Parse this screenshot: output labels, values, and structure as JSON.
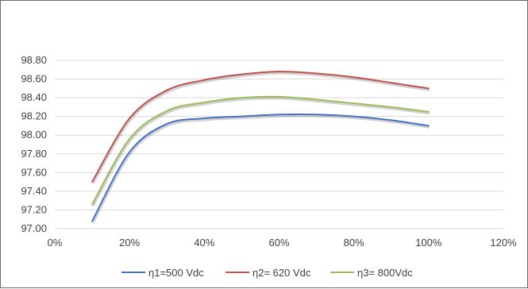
{
  "chart_data": {
    "type": "line",
    "title": "",
    "xlabel": "",
    "ylabel": "",
    "x": [
      0.1,
      0.2,
      0.3,
      0.4,
      0.5,
      0.6,
      0.7,
      0.8,
      0.9,
      1.0
    ],
    "xlim": [
      0,
      1.2
    ],
    "ylim": [
      97.0,
      98.8
    ],
    "x_ticks": [
      "0%",
      "20%",
      "40%",
      "60%",
      "80%",
      "100%",
      "120%"
    ],
    "y_ticks": [
      "97.00",
      "97.20",
      "97.40",
      "97.60",
      "97.80",
      "98.00",
      "98.20",
      "98.40",
      "98.60",
      "98.80"
    ],
    "grid": "horizontal",
    "legend_position": "bottom",
    "series": [
      {
        "name": "η1=500 Vdc",
        "color": "#4472c4",
        "values": [
          97.08,
          97.82,
          98.12,
          98.18,
          98.2,
          98.22,
          98.22,
          98.2,
          98.16,
          98.1
        ]
      },
      {
        "name": "η2= 620 Vdc",
        "color": "#c0504d",
        "values": [
          97.5,
          98.18,
          98.48,
          98.59,
          98.65,
          98.68,
          98.66,
          98.62,
          98.56,
          98.5
        ]
      },
      {
        "name": "η3= 800Vdc",
        "color": "#9bbb59",
        "values": [
          97.26,
          97.96,
          98.26,
          98.35,
          98.4,
          98.41,
          98.38,
          98.34,
          98.3,
          98.25
        ]
      }
    ]
  }
}
